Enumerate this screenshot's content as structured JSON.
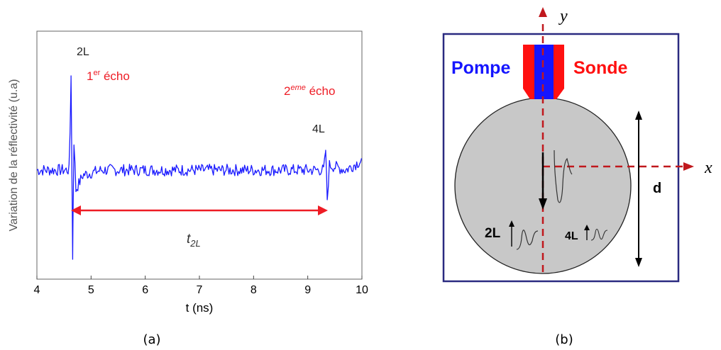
{
  "panel_a": {
    "caption": "(a)",
    "ylabel": "Variation de la réflectivité (u.a)",
    "xlabel": "t (ns)",
    "xticks": [
      "4",
      "5",
      "6",
      "7",
      "8",
      "9",
      "10"
    ],
    "labels": {
      "peak_2L": "2L",
      "peak_4L": "4L",
      "echo1_main": "1",
      "echo1_sup": "er",
      "echo1_rest": " écho",
      "echo2_main": "2",
      "echo2_sup": "eme",
      "echo2_rest": " écho",
      "t_main": "t",
      "t_sub": "2L"
    },
    "colors": {
      "signal": "#1a1aff",
      "annotation": "#ee1c25",
      "axis": "#000000"
    }
  },
  "chart_data": {
    "type": "line",
    "xlabel": "t (ns)",
    "ylabel": "Variation de la réflectivité (u.a)",
    "xlim": [
      4,
      10
    ],
    "series": [
      {
        "x": [
          4.0,
          4.6,
          4.63,
          4.66,
          4.68,
          4.72,
          4.85,
          5.2,
          6.0,
          7.0,
          8.0,
          9.0,
          9.2,
          9.3,
          9.33,
          9.36,
          9.4,
          9.7,
          10.0
        ],
        "y": [
          0.0,
          0.0,
          0.95,
          -0.9,
          0.35,
          -0.2,
          -0.05,
          0.0,
          0.0,
          0.0,
          0.0,
          0.0,
          0.0,
          0.0,
          0.2,
          -0.3,
          0.05,
          0.0,
          0.1
        ]
      }
    ],
    "annotations": [
      {
        "text": "2L",
        "x": 4.65
      },
      {
        "text": "4L",
        "x": 9.3
      },
      {
        "text": "1er écho",
        "x": 4.65
      },
      {
        "text": "2eme écho",
        "x": 9.3
      },
      {
        "text": "t2L",
        "x_range": [
          4.65,
          9.3
        ]
      }
    ]
  },
  "panel_b": {
    "caption": "(b)",
    "pump_label": "Pompe",
    "probe_label": "Sonde",
    "axis_x": "x",
    "axis_y": "y",
    "diameter_label": "d",
    "echo_2L": "2L",
    "echo_4L": "4L",
    "colors": {
      "frame": "#2a2a80",
      "pump": "#1515ff",
      "probe": "#ff1010",
      "axes": "#c0181d",
      "sphere_fill": "#c8c8c8"
    }
  }
}
